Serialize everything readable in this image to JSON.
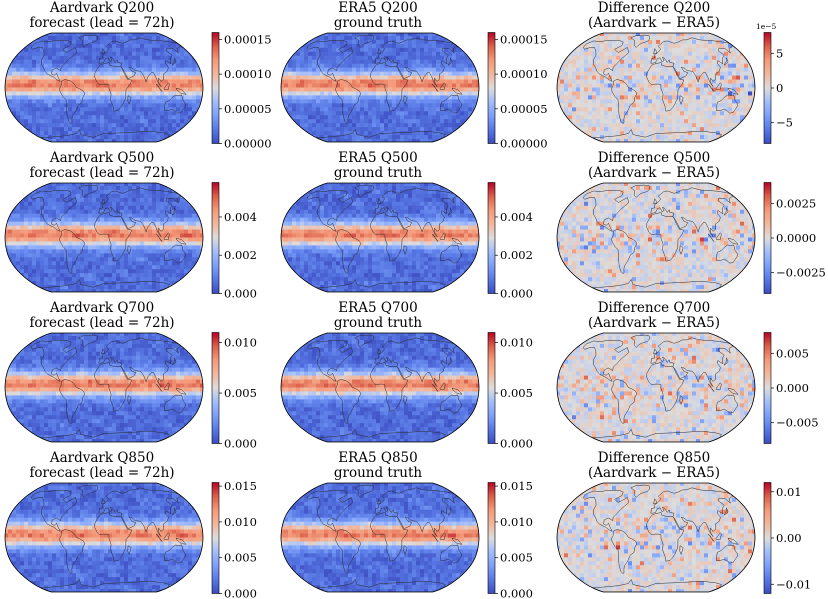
{
  "chart_data": [
    {
      "type": "heatmap",
      "row": 0,
      "col": 0,
      "title": "Aardvark Q200",
      "subtitle": "forecast (lead = 72h)",
      "colormap": "coolwarm",
      "vmin": 0.0,
      "vmax": 0.00016,
      "ticks": [
        0.0,
        5e-05,
        0.0001,
        0.00015
      ],
      "tick_labels": [
        "0.00000",
        "0.00005",
        "0.00010",
        "0.00015"
      ],
      "offset_label": "",
      "field": "full"
    },
    {
      "type": "heatmap",
      "row": 0,
      "col": 1,
      "title": "ERA5 Q200",
      "subtitle": "ground truth",
      "colormap": "coolwarm",
      "vmin": 0.0,
      "vmax": 0.00016,
      "ticks": [
        0.0,
        5e-05,
        0.0001,
        0.00015
      ],
      "tick_labels": [
        "0.00000",
        "0.00005",
        "0.00010",
        "0.00015"
      ],
      "offset_label": "",
      "field": "full"
    },
    {
      "type": "heatmap",
      "row": 0,
      "col": 2,
      "title": "Difference Q200",
      "subtitle": "(Aardvark − ERA5)",
      "colormap": "coolwarm",
      "vmin": -8,
      "vmax": 8,
      "ticks": [
        -5,
        0,
        5
      ],
      "tick_labels": [
        "−5",
        "0",
        "5"
      ],
      "offset_label": "1e−5",
      "field": "diff"
    },
    {
      "type": "heatmap",
      "row": 1,
      "col": 0,
      "title": "Aardvark Q500",
      "subtitle": "forecast (lead = 72h)",
      "colormap": "coolwarm",
      "vmin": 0.0,
      "vmax": 0.0058,
      "ticks": [
        0.0,
        0.002,
        0.004
      ],
      "tick_labels": [
        "0.000",
        "0.002",
        "0.004"
      ],
      "offset_label": "",
      "field": "full"
    },
    {
      "type": "heatmap",
      "row": 1,
      "col": 1,
      "title": "ERA5 Q500",
      "subtitle": "ground truth",
      "colormap": "coolwarm",
      "vmin": 0.0,
      "vmax": 0.0058,
      "ticks": [
        0.0,
        0.002,
        0.004
      ],
      "tick_labels": [
        "0.000",
        "0.002",
        "0.004"
      ],
      "offset_label": "",
      "field": "full"
    },
    {
      "type": "heatmap",
      "row": 1,
      "col": 2,
      "title": "Difference Q500",
      "subtitle": "(Aardvark − ERA5)",
      "colormap": "coolwarm",
      "vmin": -0.004,
      "vmax": 0.004,
      "ticks": [
        -0.0025,
        0.0,
        0.0025
      ],
      "tick_labels": [
        "−0.0025",
        "0.0000",
        "0.0025"
      ],
      "offset_label": "",
      "field": "diff"
    },
    {
      "type": "heatmap",
      "row": 2,
      "col": 0,
      "title": "Aardvark Q700",
      "subtitle": "forecast (lead = 72h)",
      "colormap": "coolwarm",
      "vmin": 0.0,
      "vmax": 0.011,
      "ticks": [
        0.0,
        0.005,
        0.01
      ],
      "tick_labels": [
        "0.000",
        "0.005",
        "0.010"
      ],
      "offset_label": "",
      "field": "full"
    },
    {
      "type": "heatmap",
      "row": 2,
      "col": 1,
      "title": "ERA5 Q700",
      "subtitle": "ground truth",
      "colormap": "coolwarm",
      "vmin": 0.0,
      "vmax": 0.011,
      "ticks": [
        0.0,
        0.005,
        0.01
      ],
      "tick_labels": [
        "0.000",
        "0.005",
        "0.010"
      ],
      "offset_label": "",
      "field": "full"
    },
    {
      "type": "heatmap",
      "row": 2,
      "col": 2,
      "title": "Difference Q700",
      "subtitle": "(Aardvark − ERA5)",
      "colormap": "coolwarm",
      "vmin": -0.008,
      "vmax": 0.008,
      "ticks": [
        -0.005,
        0.0,
        0.005
      ],
      "tick_labels": [
        "−0.005",
        "0.000",
        "0.005"
      ],
      "offset_label": "",
      "field": "diff"
    },
    {
      "type": "heatmap",
      "row": 3,
      "col": 0,
      "title": "Aardvark Q850",
      "subtitle": "forecast (lead = 72h)",
      "colormap": "coolwarm",
      "vmin": 0.0,
      "vmax": 0.0155,
      "ticks": [
        0.0,
        0.005,
        0.01,
        0.015
      ],
      "tick_labels": [
        "0.000",
        "0.005",
        "0.010",
        "0.015"
      ],
      "offset_label": "",
      "field": "full"
    },
    {
      "type": "heatmap",
      "row": 3,
      "col": 1,
      "title": "ERA5 Q850",
      "subtitle": "ground truth",
      "colormap": "coolwarm",
      "vmin": 0.0,
      "vmax": 0.0155,
      "ticks": [
        0.0,
        0.005,
        0.01,
        0.015
      ],
      "tick_labels": [
        "0.000",
        "0.005",
        "0.010",
        "0.015"
      ],
      "offset_label": "",
      "field": "full"
    },
    {
      "type": "heatmap",
      "row": 3,
      "col": 2,
      "title": "Difference Q850",
      "subtitle": "(Aardvark − ERA5)",
      "colormap": "coolwarm",
      "vmin": -0.012,
      "vmax": 0.012,
      "ticks": [
        -0.01,
        0.0,
        0.01
      ],
      "tick_labels": [
        "−0.01",
        "0.00",
        "0.01"
      ],
      "offset_label": "",
      "field": "diff"
    }
  ],
  "colors": {
    "cmap_low": "#3b4cc0",
    "cmap_mid": "#dddcdc",
    "cmap_high": "#b40426",
    "coastline": "#2b2b2b",
    "border": "#000000"
  }
}
